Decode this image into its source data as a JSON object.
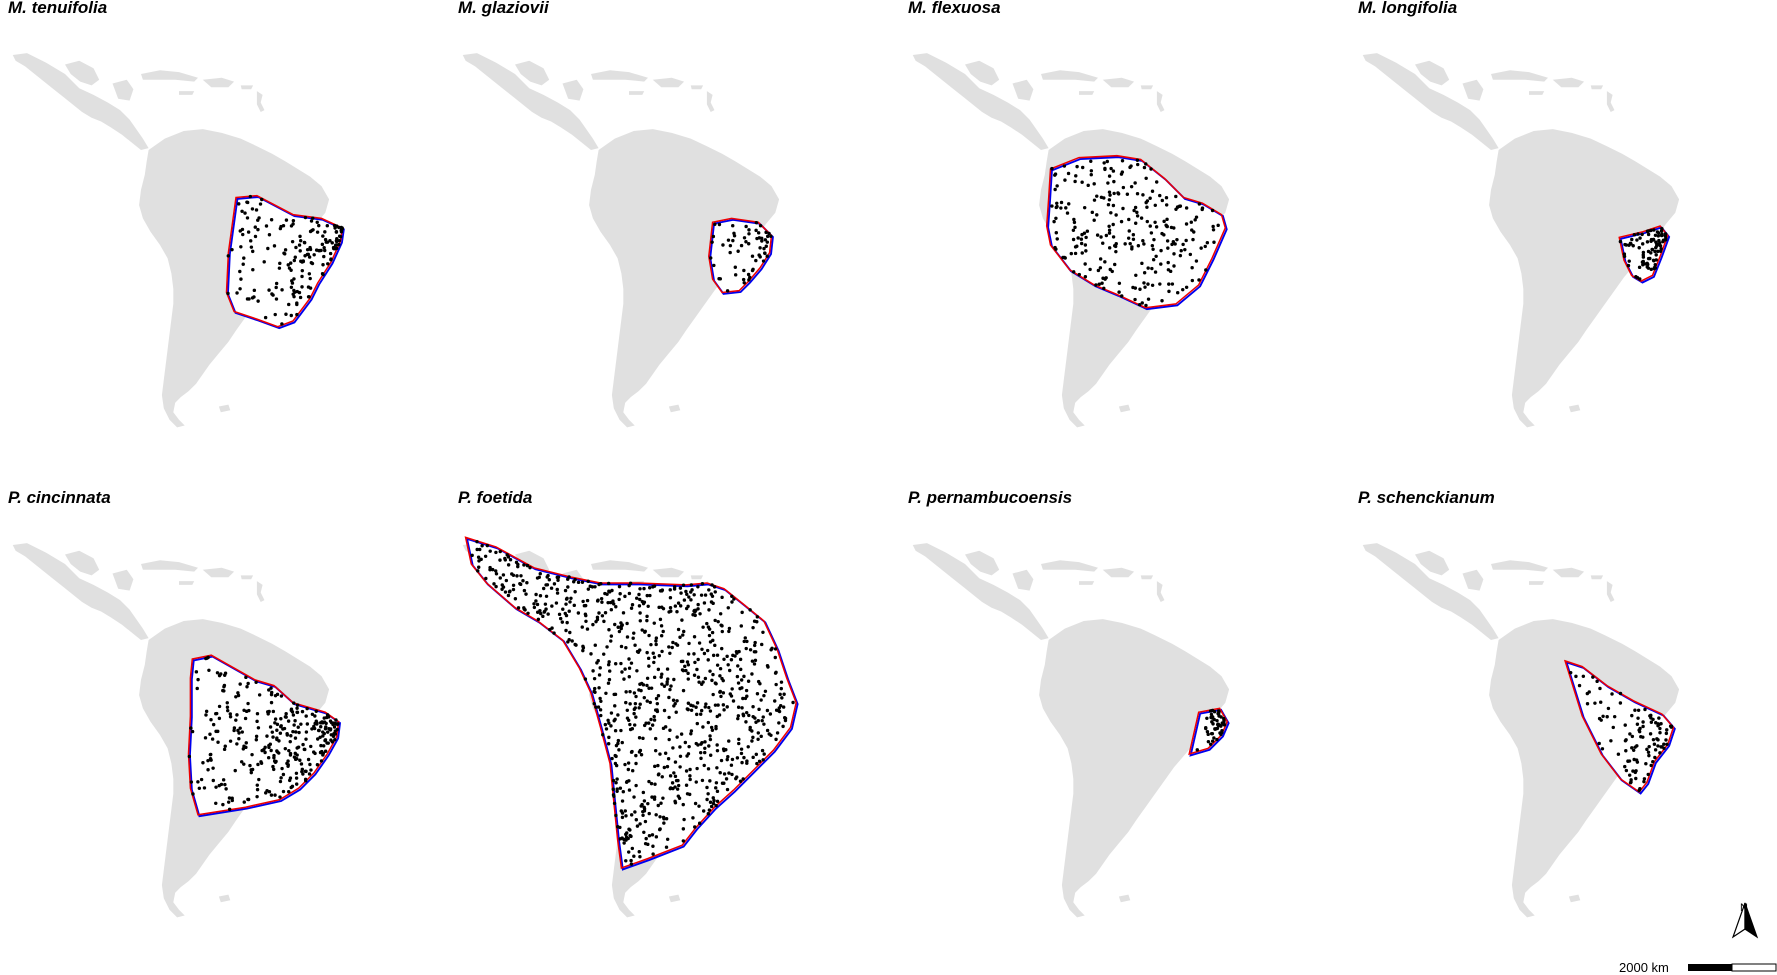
{
  "panels": [
    {
      "title": "M. tenuifolia",
      "points_hint": "north-east Brazil dense cluster, scattered Amazon"
    },
    {
      "title": "M. glaziovii",
      "points_hint": "north-east Brazil"
    },
    {
      "title": "M. flexuosa",
      "points_hint": "northern South America widespread"
    },
    {
      "title": "M. longifolia",
      "points_hint": "eastern Brazil coast"
    },
    {
      "title": "P. cincinnata",
      "points_hint": "eastern and central Brazil"
    },
    {
      "title": "P. foetida",
      "points_hint": "widespread Neotropics"
    },
    {
      "title": "P. pernambucoensis",
      "points_hint": "north-east Brazil small"
    },
    {
      "title": "P. schenckianum",
      "points_hint": "eastern Brazil coast"
    }
  ],
  "legend": {
    "north": "N",
    "scale": "2000 km"
  },
  "colors": {
    "land": "#e0e0e0",
    "hull_blue": "#0000ee",
    "hull_red": "#ee0000",
    "points": "#000000"
  }
}
